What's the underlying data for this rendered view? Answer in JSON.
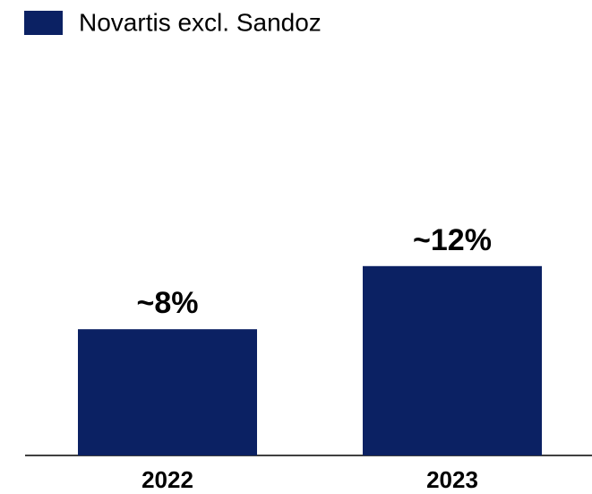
{
  "chart_data": {
    "type": "bar",
    "categories": [
      "2022",
      "2023"
    ],
    "series": [
      {
        "name": "Novartis excl. Sandoz",
        "color": "#0b2163",
        "values": [
          8,
          12
        ],
        "value_labels": [
          "~8%",
          "~12%"
        ]
      }
    ]
  }
}
